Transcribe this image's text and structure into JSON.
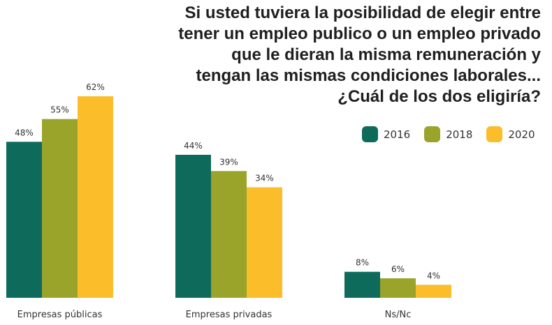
{
  "chart_data": {
    "type": "bar",
    "title_lines": [
      "Si usted tuviera la posibilidad de elegir entre",
      "tener un empleo publico o un empleo privado",
      "que le dieran la misma remuneración y",
      "tengan las mismas condiciones laborales...",
      "¿Cuál de los dos eligiría?"
    ],
    "categories": [
      "Empresas públicas",
      "Empresas privadas",
      "Ns/Nc"
    ],
    "series": [
      {
        "name": "2016",
        "color": "#0e6b5c",
        "values": [
          48,
          44,
          8
        ],
        "labels": [
          "48%",
          "44%",
          "8%"
        ]
      },
      {
        "name": "2018",
        "color": "#9aa42a",
        "values": [
          55,
          39,
          6
        ],
        "labels": [
          "55%",
          "39%",
          "6%"
        ]
      },
      {
        "name": "2020",
        "color": "#fbbd2a",
        "values": [
          62,
          34,
          4
        ],
        "labels": [
          "62%",
          "34%",
          "4%"
        ]
      }
    ],
    "unit": "%",
    "legend_position": "top-right",
    "grid": false
  }
}
